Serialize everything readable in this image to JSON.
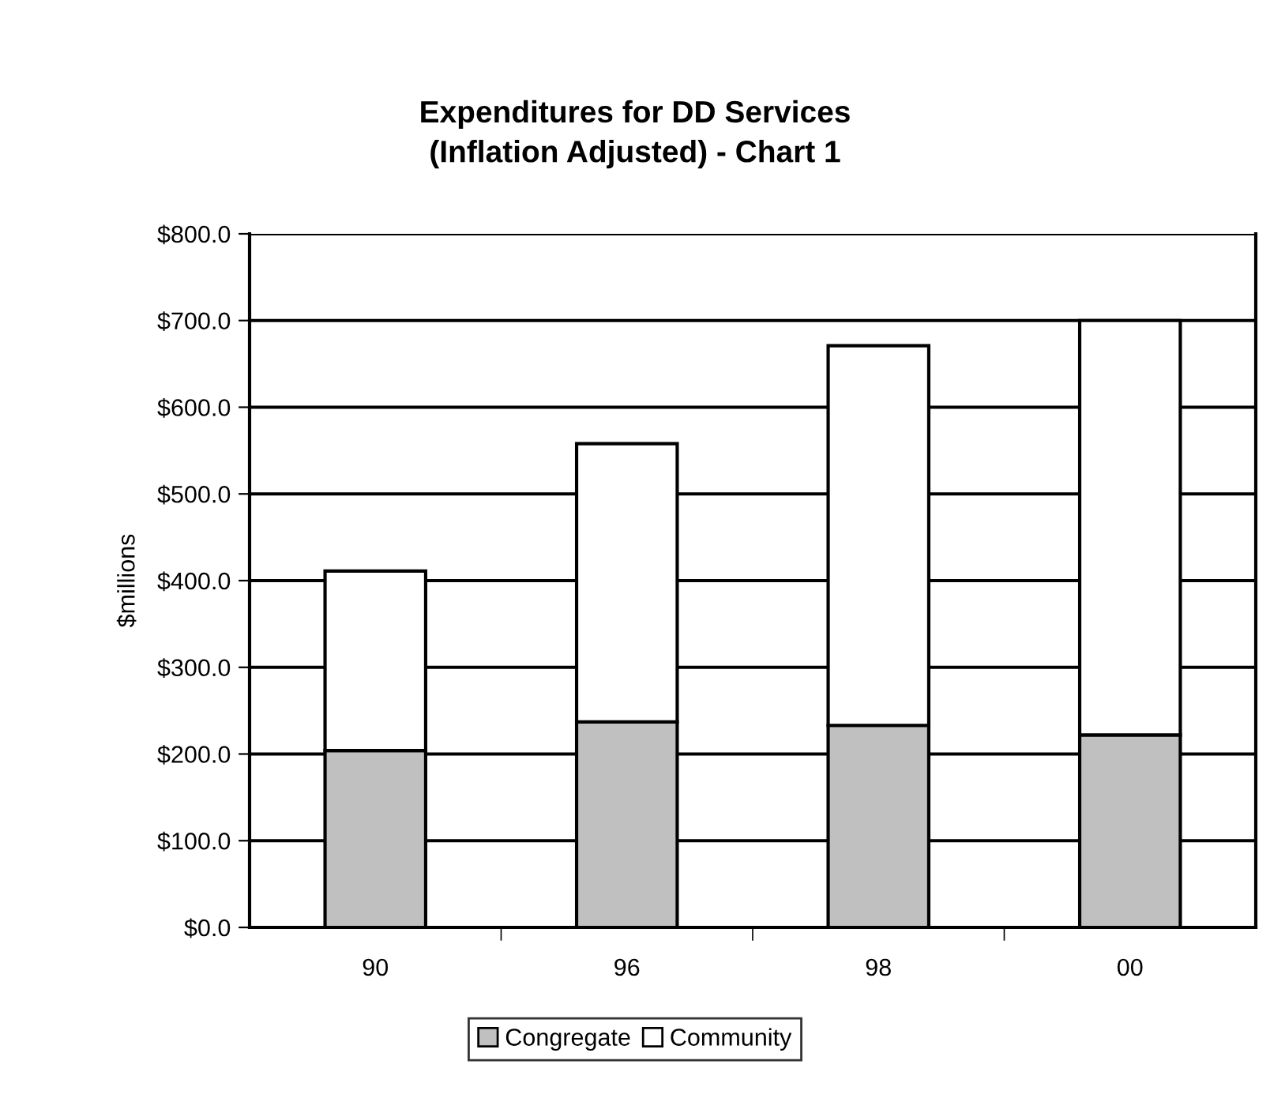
{
  "chart_data": {
    "type": "bar",
    "title": "Expenditures for DD Services\n(Inflation Adjusted) - Chart 1",
    "ylabel": "$millions",
    "categories": [
      "90",
      "96",
      "98",
      "00"
    ],
    "series": [
      {
        "name": "Congregate",
        "color": "#c0c0c0",
        "values": [
          204,
          237,
          233,
          222
        ]
      },
      {
        "name": "Community",
        "color": "#ffffff",
        "values": [
          207,
          321,
          438,
          478
        ]
      }
    ],
    "stacked": true,
    "ylim": [
      0,
      800
    ],
    "yticks": [
      {
        "value": 0,
        "label": "$0.0"
      },
      {
        "value": 100,
        "label": "$100.0"
      },
      {
        "value": 200,
        "label": "$200.0"
      },
      {
        "value": 300,
        "label": "$300.0"
      },
      {
        "value": 400,
        "label": "$400.0"
      },
      {
        "value": 500,
        "label": "$500.0"
      },
      {
        "value": 600,
        "label": "$600.0"
      },
      {
        "value": 700,
        "label": "$700.0"
      },
      {
        "value": 800,
        "label": "$800.0"
      }
    ],
    "grid": "y",
    "legend": "bottom"
  }
}
